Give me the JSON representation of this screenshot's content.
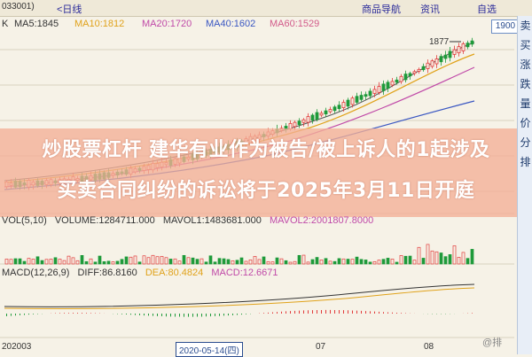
{
  "header": {
    "code": "033001)",
    "back": "<日线",
    "tabs": [
      "商品导航",
      "资讯",
      "自选"
    ]
  },
  "ma": {
    "k": "K",
    "ma5": "MA5:1845",
    "ma10": "MA10:1812",
    "ma20": "MA20:1720",
    "ma40": "MA40:1602",
    "ma60": "MA60:1529",
    "badge": "1900",
    "high_label": "1877"
  },
  "overlay": {
    "line1": "炒股票杠杆 建华有业作为被告/被上诉人的1起涉及",
    "line2": "买卖合同纠纷的诉讼将于2025年3月11日开庭"
  },
  "volume": {
    "vol": "VOL(5,10)",
    "volume": "VOLUME:1284711.000",
    "mavol1": "MAVOL1:1483681.000",
    "mavol2": "MAVOL2:2001807.8000"
  },
  "macd": {
    "label": "MACD(12,26,9)",
    "diff": "DIFF:86.8160",
    "dea": "DEA:80.4824",
    "macd": "MACD:12.6671"
  },
  "dates": {
    "d1": "202003",
    "d2": "2020-05-14(四)",
    "d3": "07",
    "d4": "08"
  },
  "side": [
    "卖",
    "买",
    "涨",
    "跌",
    "量",
    "价",
    "分",
    "排"
  ],
  "watermark": "@排",
  "colors": {
    "ma5": "#333333",
    "ma10": "#e0a21a",
    "ma20": "#c04aa8",
    "ma40": "#3a57c2",
    "ma60": "#d25b8a",
    "up": "#e23b3b",
    "down": "#1f9a3b"
  }
}
